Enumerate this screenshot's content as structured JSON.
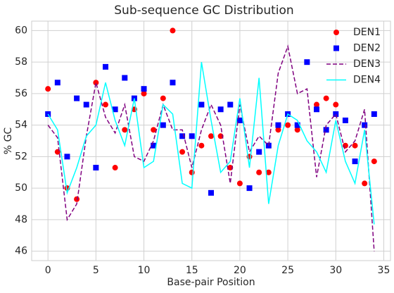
{
  "chart_data": {
    "type": "line",
    "title": "Sub-sequence GC Distribution",
    "xlabel": "Base-pair Position",
    "ylabel": "% GC",
    "x": [
      0,
      1,
      2,
      3,
      4,
      5,
      6,
      7,
      8,
      9,
      10,
      11,
      12,
      13,
      14,
      15,
      16,
      17,
      18,
      19,
      20,
      21,
      22,
      23,
      24,
      25,
      26,
      27,
      28,
      29,
      30,
      31,
      32,
      33,
      34
    ],
    "series": [
      {
        "name": "DEN1",
        "color": "#ff0000",
        "kind": "scatter",
        "marker": "circle",
        "values": [
          56.3,
          52.3,
          50.0,
          49.3,
          null,
          56.7,
          55.3,
          51.3,
          53.7,
          55.0,
          56.0,
          53.7,
          55.7,
          60.0,
          52.3,
          51.0,
          52.7,
          53.3,
          53.3,
          51.3,
          50.3,
          52.0,
          51.0,
          51.0,
          53.7,
          54.0,
          53.7,
          null,
          55.3,
          55.7,
          55.3,
          52.7,
          52.7,
          50.3,
          51.7
        ]
      },
      {
        "name": "DEN2",
        "color": "#0000ff",
        "kind": "scatter",
        "marker": "square",
        "values": [
          54.7,
          56.7,
          52.0,
          55.7,
          55.3,
          51.3,
          57.7,
          55.0,
          57.0,
          55.7,
          56.3,
          52.7,
          54.0,
          56.7,
          53.3,
          53.3,
          55.3,
          49.7,
          55.0,
          55.3,
          54.3,
          50.0,
          52.3,
          52.7,
          54.0,
          54.7,
          54.0,
          58.0,
          55.0,
          53.7,
          54.7,
          54.3,
          51.7,
          54.0,
          54.7
        ]
      },
      {
        "name": "DEN3",
        "color": "#800080",
        "kind": "line",
        "dashed": true,
        "values": [
          54.0,
          53.2,
          48.0,
          49.0,
          53.3,
          56.7,
          54.5,
          53.5,
          55.3,
          52.0,
          51.7,
          53.0,
          55.3,
          53.7,
          53.7,
          51.3,
          53.7,
          55.3,
          54.0,
          50.3,
          55.3,
          52.3,
          53.3,
          52.7,
          57.3,
          59.0,
          56.0,
          56.3,
          50.7,
          54.0,
          54.7,
          52.3,
          53.0,
          55.0,
          46.0
        ]
      },
      {
        "name": "DEN4",
        "color": "#00ffff",
        "kind": "line",
        "dashed": false,
        "values": [
          54.7,
          53.7,
          49.7,
          51.3,
          53.3,
          54.0,
          56.7,
          54.3,
          52.7,
          55.7,
          51.3,
          51.7,
          55.3,
          54.7,
          50.3,
          50.0,
          58.0,
          54.3,
          51.0,
          51.7,
          55.7,
          51.3,
          57.0,
          49.0,
          52.7,
          54.7,
          54.3,
          53.0,
          52.3,
          51.0,
          54.3,
          51.7,
          50.3,
          53.7,
          47.7
        ]
      }
    ],
    "xlim": [
      -1.7,
      35.7
    ],
    "ylim": [
      45.4,
      60.6
    ],
    "xticks": [
      0,
      5,
      10,
      15,
      20,
      25,
      30,
      35
    ],
    "yticks": [
      46,
      48,
      50,
      52,
      54,
      56,
      58,
      60
    ],
    "grid": true,
    "legend": "upper right"
  }
}
